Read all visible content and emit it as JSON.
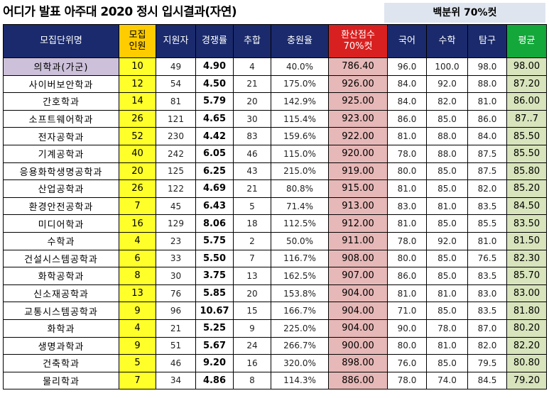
{
  "title": "어디가 발표 아주대 2020 정시 입시결과(자연)",
  "subtitle": "백분위 70%컷",
  "headers": {
    "name": "모집단위명",
    "quota_line1": "모집",
    "quota_line2": "인원",
    "applicants": "지원자",
    "ratio": "경쟁률",
    "additional": "추합",
    "fill_rate": "충원율",
    "score_line1": "환산점수",
    "score_line2": "70%컷",
    "korean": "국어",
    "math": "수학",
    "inquiry": "탐구",
    "average": "평균"
  },
  "rows": [
    {
      "name": "의학과(가군)",
      "quota": "10",
      "applicants": "49",
      "ratio": "4.90",
      "additional": "4",
      "fill_rate": "40.0%",
      "score": "786.40",
      "korean": "96.0",
      "math": "100.0",
      "inquiry": "98.0",
      "average": "98.00"
    },
    {
      "name": "사이버보안학과",
      "quota": "12",
      "applicants": "54",
      "ratio": "4.50",
      "additional": "21",
      "fill_rate": "175.0%",
      "score": "926.00",
      "korean": "84.0",
      "math": "92.0",
      "inquiry": "88.0",
      "average": "87.20"
    },
    {
      "name": "간호학과",
      "quota": "14",
      "applicants": "81",
      "ratio": "5.79",
      "additional": "20",
      "fill_rate": "142.9%",
      "score": "925.00",
      "korean": "84.0",
      "math": "82.0",
      "inquiry": "81.0",
      "average": "86.00"
    },
    {
      "name": "소프트웨어학과",
      "quota": "26",
      "applicants": "121",
      "ratio": "4.65",
      "additional": "30",
      "fill_rate": "115.4%",
      "score": "923.00",
      "korean": "86.0",
      "math": "85.0",
      "inquiry": "86.0",
      "average": "87..7"
    },
    {
      "name": "전자공학과",
      "quota": "52",
      "applicants": "230",
      "ratio": "4.42",
      "additional": "83",
      "fill_rate": "159.6%",
      "score": "922.00",
      "korean": "81.0",
      "math": "88.0",
      "inquiry": "84.0",
      "average": "85.50"
    },
    {
      "name": "기계공학과",
      "quota": "40",
      "applicants": "242",
      "ratio": "6.05",
      "additional": "46",
      "fill_rate": "115.0%",
      "score": "920.00",
      "korean": "78.0",
      "math": "88.0",
      "inquiry": "87.5",
      "average": "85.50"
    },
    {
      "name": "응용화학생명공학과",
      "quota": "20",
      "applicants": "125",
      "ratio": "6.25",
      "additional": "43",
      "fill_rate": "215.0%",
      "score": "919.00",
      "korean": "80.0",
      "math": "85.0",
      "inquiry": "87.5",
      "average": "85.80"
    },
    {
      "name": "산업공학과",
      "quota": "26",
      "applicants": "122",
      "ratio": "4.69",
      "additional": "21",
      "fill_rate": "80.8%",
      "score": "915.00",
      "korean": "81.0",
      "math": "85.0",
      "inquiry": "82.0",
      "average": "85.20"
    },
    {
      "name": "환경안전공학과",
      "quota": "7",
      "applicants": "45",
      "ratio": "6.43",
      "additional": "5",
      "fill_rate": "71.4%",
      "score": "913.00",
      "korean": "83.0",
      "math": "81.0",
      "inquiry": "83.5",
      "average": "84.50"
    },
    {
      "name": "미디어학과",
      "quota": "16",
      "applicants": "129",
      "ratio": "8.06",
      "additional": "18",
      "fill_rate": "112.5%",
      "score": "912.00",
      "korean": "81.0",
      "math": "85.0",
      "inquiry": "85.5",
      "average": "83.50"
    },
    {
      "name": "수학과",
      "quota": "4",
      "applicants": "23",
      "ratio": "5.75",
      "additional": "2",
      "fill_rate": "50.0%",
      "score": "911.00",
      "korean": "78.0",
      "math": "92.0",
      "inquiry": "81.0",
      "average": "81.50"
    },
    {
      "name": "건설시스템공학과",
      "quota": "6",
      "applicants": "33",
      "ratio": "5.50",
      "additional": "7",
      "fill_rate": "116.7%",
      "score": "908.00",
      "korean": "80.0",
      "math": "85.0",
      "inquiry": "76.5",
      "average": "82.30"
    },
    {
      "name": "화학공학과",
      "quota": "8",
      "applicants": "30",
      "ratio": "3.75",
      "additional": "13",
      "fill_rate": "162.5%",
      "score": "907.00",
      "korean": "86.0",
      "math": "85.0",
      "inquiry": "83.5",
      "average": "85.70"
    },
    {
      "name": "신소재공학과",
      "quota": "13",
      "applicants": "76",
      "ratio": "5.85",
      "additional": "20",
      "fill_rate": "153.8%",
      "score": "904.00",
      "korean": "81.0",
      "math": "81.0",
      "inquiry": "83.0",
      "average": "83.00"
    },
    {
      "name": "교통시스템공학과",
      "quota": "9",
      "applicants": "96",
      "ratio": "10.67",
      "additional": "15",
      "fill_rate": "166.7%",
      "score": "904.00",
      "korean": "71.0",
      "math": "85.0",
      "inquiry": "83.5",
      "average": "81.80"
    },
    {
      "name": "화학과",
      "quota": "4",
      "applicants": "21",
      "ratio": "5.25",
      "additional": "9",
      "fill_rate": "225.0%",
      "score": "904.00",
      "korean": "90.0",
      "math": "78.0",
      "inquiry": "87.0",
      "average": "80.20"
    },
    {
      "name": "생명과학과",
      "quota": "9",
      "applicants": "51",
      "ratio": "5.67",
      "additional": "24",
      "fill_rate": "266.7%",
      "score": "900.00",
      "korean": "80.0",
      "math": "81.0",
      "inquiry": "82.0",
      "average": "82.20"
    },
    {
      "name": "건축학과",
      "quota": "5",
      "applicants": "46",
      "ratio": "9.20",
      "additional": "16",
      "fill_rate": "320.0%",
      "score": "898.00",
      "korean": "76.0",
      "math": "85.0",
      "inquiry": "79.5",
      "average": "80.80"
    },
    {
      "name": "물리학과",
      "quota": "7",
      "applicants": "34",
      "ratio": "4.86",
      "additional": "8",
      "fill_rate": "114.3%",
      "score": "886.00",
      "korean": "78.0",
      "math": "74.0",
      "inquiry": "84.5",
      "average": "79.20"
    }
  ]
}
